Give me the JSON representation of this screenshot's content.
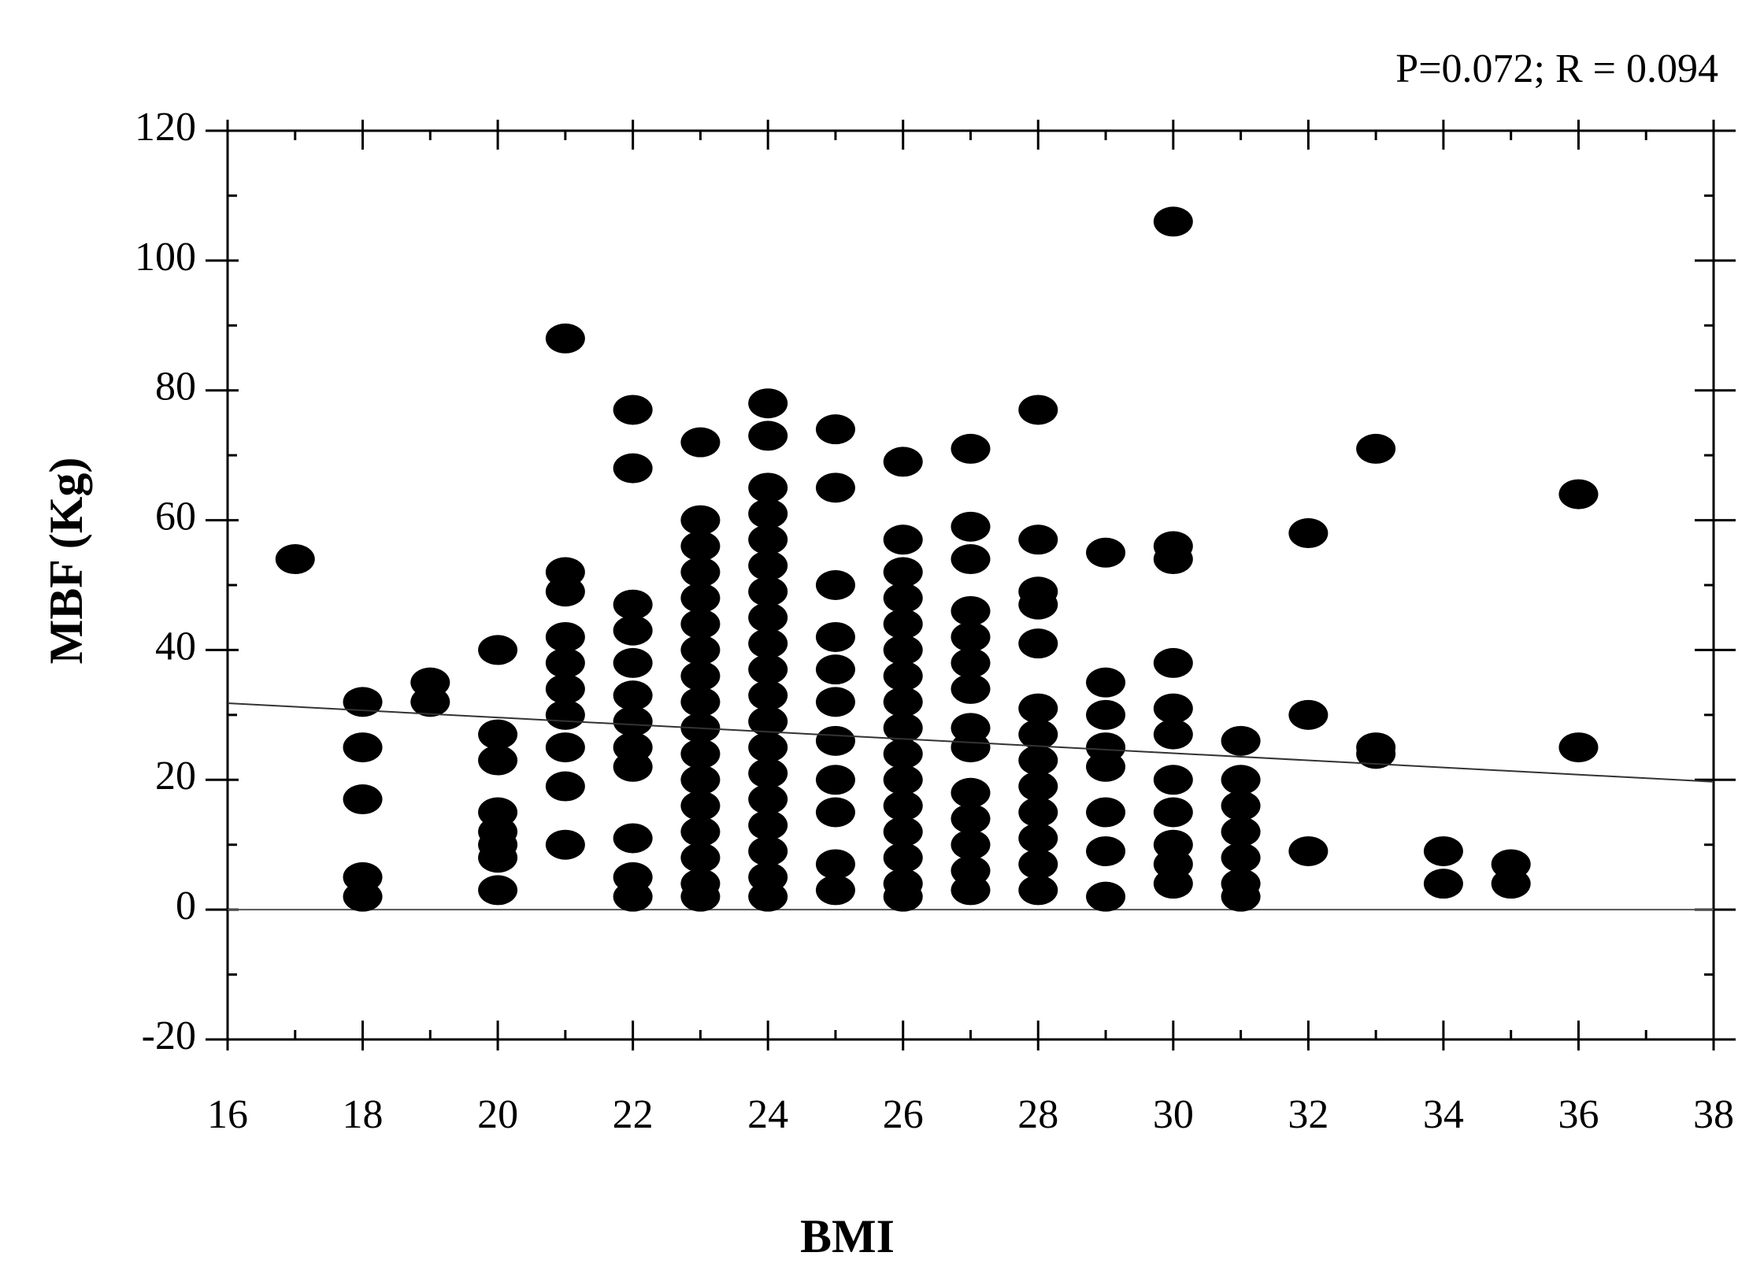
{
  "chart_data": {
    "type": "scatter",
    "annotation": "P=0.072; R = 0.094",
    "x_label": "BMI",
    "y_label": "MBF (Kg)",
    "color": "#000000",
    "xlim": [
      16,
      38
    ],
    "xticks": [
      16,
      18,
      20,
      22,
      24,
      26,
      28,
      30,
      32,
      34,
      36,
      38
    ],
    "ylim": [
      -20,
      120
    ],
    "yticks": [
      -20,
      0,
      20,
      40,
      60,
      80,
      100,
      120
    ],
    "grid": false,
    "zero_line": true,
    "fit": {
      "x": [
        16,
        38
      ],
      "y": [
        31.8,
        19.7
      ]
    },
    "x": [
      17,
      18,
      18,
      18,
      18,
      18,
      19,
      19,
      20,
      20,
      20,
      20,
      20,
      20,
      20,
      20,
      21,
      21,
      21,
      21,
      21,
      21,
      21,
      21,
      21,
      21,
      22,
      22,
      22,
      22,
      22,
      22,
      22,
      22,
      22,
      22,
      22,
      22,
      23,
      23,
      23,
      23,
      23,
      23,
      23,
      23,
      23,
      23,
      23,
      23,
      23,
      23,
      23,
      23,
      23,
      24,
      24,
      24,
      24,
      24,
      24,
      24,
      24,
      24,
      24,
      24,
      24,
      24,
      24,
      24,
      24,
      24,
      24,
      24,
      25,
      25,
      25,
      25,
      25,
      25,
      25,
      25,
      25,
      25,
      25,
      26,
      26,
      26,
      26,
      26,
      26,
      26,
      26,
      26,
      26,
      26,
      26,
      26,
      26,
      26,
      26,
      27,
      27,
      27,
      27,
      27,
      27,
      27,
      27,
      27,
      27,
      27,
      27,
      27,
      27,
      28,
      28,
      28,
      28,
      28,
      28,
      28,
      28,
      28,
      28,
      28,
      28,
      28,
      29,
      29,
      29,
      29,
      29,
      29,
      29,
      29,
      30,
      30,
      30,
      30,
      30,
      30,
      30,
      30,
      30,
      30,
      30,
      31,
      31,
      31,
      31,
      31,
      31,
      31,
      32,
      32,
      32,
      33,
      33,
      33,
      34,
      34,
      35,
      35,
      36,
      36
    ],
    "y": [
      54,
      32,
      25,
      17,
      5,
      2,
      35,
      32,
      40,
      27,
      23,
      15,
      12,
      10,
      8,
      3,
      88,
      52,
      49,
      42,
      38,
      34,
      30,
      25,
      19,
      10,
      77,
      68,
      47,
      43,
      38,
      33,
      29,
      25,
      22,
      11,
      5,
      2,
      72,
      60,
      56,
      52,
      48,
      44,
      40,
      36,
      32,
      28,
      24,
      20,
      16,
      12,
      8,
      4,
      2,
      78,
      73,
      65,
      61,
      57,
      53,
      49,
      45,
      41,
      37,
      33,
      29,
      25,
      21,
      17,
      13,
      9,
      5,
      2,
      74,
      65,
      50,
      42,
      37,
      32,
      26,
      20,
      15,
      7,
      3,
      69,
      57,
      52,
      48,
      44,
      40,
      36,
      32,
      28,
      24,
      20,
      16,
      12,
      8,
      4,
      2,
      71,
      59,
      54,
      46,
      42,
      38,
      34,
      28,
      25,
      18,
      14,
      10,
      6,
      3,
      77,
      57,
      49,
      47,
      41,
      31,
      27,
      23,
      19,
      15,
      11,
      7,
      3,
      55,
      35,
      30,
      25,
      22,
      15,
      9,
      2,
      106,
      56,
      54,
      38,
      31,
      27,
      20,
      15,
      10,
      7,
      4,
      26,
      20,
      16,
      12,
      8,
      4,
      2,
      58,
      30,
      9,
      71,
      25,
      24,
      9,
      4,
      7,
      4,
      64,
      25
    ]
  }
}
